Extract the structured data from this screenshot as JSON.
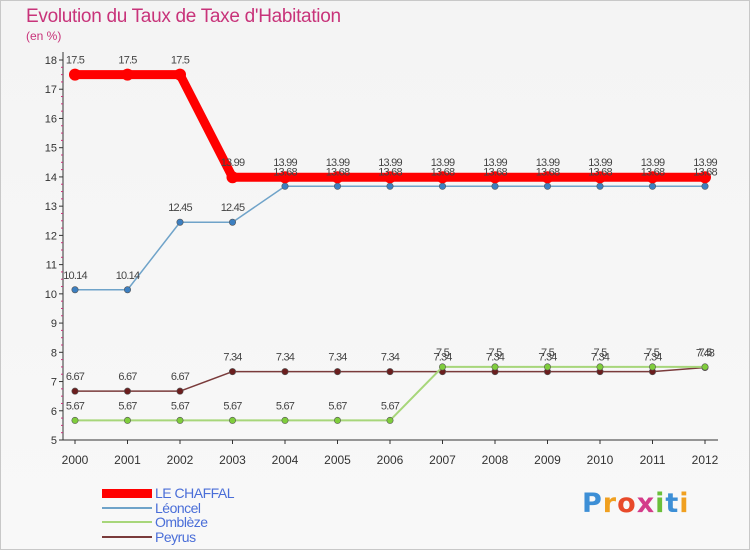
{
  "title": "Evolution du Taux de Taxe d'Habitation",
  "subtitle": "(en %)",
  "logo_text": "Proxiti",
  "chart_data": {
    "type": "line",
    "title": "Evolution du Taux de Taxe d'Habitation",
    "subtitle": "(en %)",
    "xlabel": "",
    "ylabel": "",
    "categories": [
      "2000",
      "2001",
      "2002",
      "2003",
      "2004",
      "2005",
      "2006",
      "2007",
      "2008",
      "2009",
      "2010",
      "2011",
      "2012"
    ],
    "ylim": [
      5,
      18
    ],
    "yticks": [
      5,
      6,
      7,
      8,
      9,
      10,
      11,
      12,
      13,
      14,
      15,
      16,
      17,
      18
    ],
    "grid": false,
    "legend_placement": "bottom-left",
    "series": [
      {
        "name": "LE CHAFFAL",
        "color": "#ff0000",
        "values": [
          17.5,
          17.5,
          17.5,
          13.99,
          13.99,
          13.99,
          13.99,
          13.99,
          13.99,
          13.99,
          13.99,
          13.99,
          13.99
        ],
        "labels": [
          "17.5",
          "17.5",
          "17.5",
          "13.99",
          "13.99",
          "13.99",
          "13.99",
          "13.99",
          "13.99",
          "13.99",
          "13.99",
          "13.99",
          "13.99"
        ]
      },
      {
        "name": "Léoncel",
        "color": "#6fa3c9",
        "values": [
          10.14,
          10.14,
          12.45,
          12.45,
          13.68,
          13.68,
          13.68,
          13.68,
          13.68,
          13.68,
          13.68,
          13.68,
          13.68
        ],
        "labels": [
          "10.14",
          "10.14",
          "12.45",
          "12.45",
          "13.68",
          "13.68",
          "13.68",
          "13.68",
          "13.68",
          "13.68",
          "13.68",
          "13.68",
          "13.68"
        ]
      },
      {
        "name": "Omblèze",
        "color": "#a7d67a",
        "values": [
          5.67,
          5.67,
          5.67,
          5.67,
          5.67,
          5.67,
          5.67,
          7.5,
          7.5,
          7.5,
          7.5,
          7.5,
          7.5
        ],
        "labels": [
          "5.67",
          "5.67",
          "5.67",
          "5.67",
          "5.67",
          "5.67",
          "5.67",
          "7.5",
          "7.5",
          "7.5",
          "7.5",
          "7.5",
          "7.5"
        ]
      },
      {
        "name": "Peyrus",
        "color": "#7a3b3b",
        "values": [
          6.67,
          6.67,
          6.67,
          7.34,
          7.34,
          7.34,
          7.34,
          7.34,
          7.34,
          7.34,
          7.34,
          7.34,
          7.48
        ],
        "labels": [
          "6.67",
          "6.67",
          "6.67",
          "7.34",
          "7.34",
          "7.34",
          "7.34",
          "7.34",
          "7.34",
          "7.34",
          "7.34",
          "7.34",
          "7.48"
        ]
      }
    ]
  }
}
